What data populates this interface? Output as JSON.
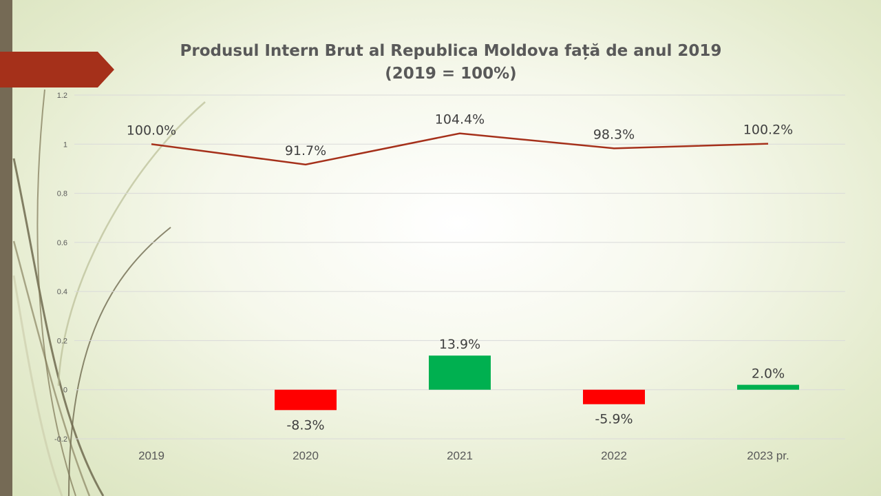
{
  "title_line1": "Produsul Intern Brut al Republica Moldova față de anul 2019",
  "title_line2": "(2019 = 100%)",
  "colors": {
    "line": "#a5301a",
    "bar_positive": "#00b050",
    "bar_negative": "#ff0000",
    "arrow_banner": "#a5301a",
    "left_bar": "#756a55"
  },
  "chart_data": {
    "type": "bar",
    "categories": [
      "2019",
      "2020",
      "2021",
      "2022",
      "2023 pr."
    ],
    "ylim": [
      -0.2,
      1.2
    ],
    "yticks": [
      -0.2,
      0,
      0.2,
      0.4,
      0.6,
      0.8,
      1,
      1.2
    ],
    "ytick_labels": [
      "-0.2",
      "0",
      "0.2",
      "0.4",
      "0.6",
      "0.8",
      "1",
      "1.2"
    ],
    "grid": true,
    "series": [
      {
        "type": "line",
        "values": [
          1.0,
          0.917,
          1.044,
          0.983,
          1.002
        ],
        "labels": [
          "100.0%",
          "91.7%",
          "104.4%",
          "98.3%",
          "100.2%"
        ]
      },
      {
        "type": "bar",
        "values": [
          null,
          -0.083,
          0.139,
          -0.059,
          0.02
        ],
        "labels": [
          "",
          "-8.3%",
          "13.9%",
          "-5.9%",
          "2.0%"
        ]
      }
    ]
  }
}
